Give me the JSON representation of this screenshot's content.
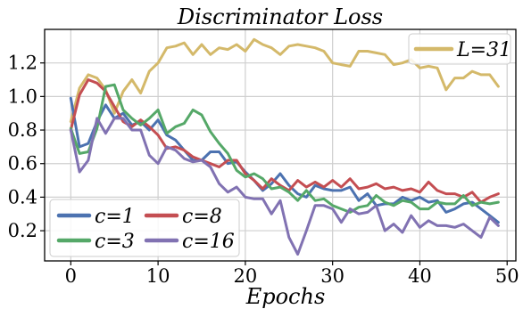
{
  "chart_data": {
    "type": "line",
    "title": "Discriminator Loss",
    "xlabel": "Epochs",
    "ylabel": "",
    "xlim": [
      -3,
      51
    ],
    "ylim": [
      0.02,
      1.4
    ],
    "xticks": [
      0,
      10,
      20,
      30,
      40,
      50
    ],
    "yticks": [
      0.2,
      0.4,
      0.6,
      0.8,
      1.0,
      1.2
    ],
    "ytick_labels": [
      "0.2",
      "0.4",
      "0.6",
      "0.8",
      "1.0",
      "1.2"
    ],
    "grid": true,
    "x": [
      0,
      1,
      2,
      3,
      4,
      5,
      6,
      7,
      8,
      9,
      10,
      11,
      12,
      13,
      14,
      15,
      16,
      17,
      18,
      19,
      20,
      21,
      22,
      23,
      24,
      25,
      26,
      27,
      28,
      29,
      30,
      31,
      32,
      33,
      34,
      35,
      36,
      37,
      38,
      39,
      40,
      41,
      42,
      43,
      44,
      45,
      46,
      47,
      48,
      49
    ],
    "series": [
      {
        "name": "L=31",
        "color": "#d4b96a",
        "values": [
          0.85,
          1.05,
          1.13,
          1.11,
          1.04,
          0.9,
          1.03,
          1.1,
          1.02,
          1.15,
          1.2,
          1.29,
          1.3,
          1.32,
          1.25,
          1.31,
          1.25,
          1.29,
          1.28,
          1.31,
          1.27,
          1.34,
          1.31,
          1.29,
          1.25,
          1.3,
          1.31,
          1.3,
          1.29,
          1.27,
          1.2,
          1.19,
          1.18,
          1.27,
          1.27,
          1.26,
          1.25,
          1.19,
          1.2,
          1.22,
          1.17,
          1.18,
          1.17,
          1.04,
          1.11,
          1.11,
          1.15,
          1.13,
          1.13,
          1.06
        ]
      },
      {
        "name": "c=1",
        "color": "#4c72b0",
        "values": [
          0.99,
          0.7,
          0.72,
          0.85,
          0.95,
          0.87,
          0.9,
          0.83,
          0.85,
          0.8,
          0.86,
          0.77,
          0.74,
          0.68,
          0.62,
          0.62,
          0.67,
          0.67,
          0.6,
          0.61,
          0.55,
          0.5,
          0.44,
          0.48,
          0.54,
          0.47,
          0.42,
          0.4,
          0.47,
          0.45,
          0.44,
          0.44,
          0.46,
          0.38,
          0.42,
          0.35,
          0.36,
          0.36,
          0.4,
          0.38,
          0.4,
          0.37,
          0.38,
          0.31,
          0.33,
          0.36,
          0.37,
          0.33,
          0.29,
          0.25
        ]
      },
      {
        "name": "c=8",
        "color": "#c44e52",
        "values": [
          0.8,
          1.01,
          1.1,
          1.08,
          1.03,
          0.94,
          0.85,
          0.82,
          0.86,
          0.82,
          0.77,
          0.69,
          0.7,
          0.68,
          0.64,
          0.62,
          0.6,
          0.58,
          0.62,
          0.62,
          0.54,
          0.5,
          0.45,
          0.51,
          0.47,
          0.44,
          0.5,
          0.46,
          0.49,
          0.46,
          0.5,
          0.46,
          0.51,
          0.45,
          0.46,
          0.48,
          0.45,
          0.46,
          0.44,
          0.45,
          0.43,
          0.49,
          0.44,
          0.42,
          0.42,
          0.4,
          0.43,
          0.37,
          0.4,
          0.42
        ]
      },
      {
        "name": "c=3",
        "color": "#55a868",
        "values": [
          0.81,
          0.66,
          0.67,
          0.81,
          1.06,
          1.07,
          0.92,
          0.87,
          0.83,
          0.87,
          0.92,
          0.78,
          0.82,
          0.84,
          0.92,
          0.89,
          0.79,
          0.72,
          0.66,
          0.56,
          0.52,
          0.54,
          0.51,
          0.45,
          0.46,
          0.43,
          0.38,
          0.44,
          0.38,
          0.39,
          0.35,
          0.33,
          0.31,
          0.34,
          0.35,
          0.41,
          0.37,
          0.35,
          0.38,
          0.37,
          0.33,
          0.33,
          0.37,
          0.36,
          0.36,
          0.41,
          0.35,
          0.37,
          0.36,
          0.37
        ]
      },
      {
        "name": "c=16",
        "color": "#8172b2",
        "values": [
          0.8,
          0.55,
          0.62,
          0.87,
          0.78,
          0.87,
          0.87,
          0.8,
          0.8,
          0.65,
          0.6,
          0.7,
          0.68,
          0.63,
          0.61,
          0.62,
          0.58,
          0.48,
          0.43,
          0.46,
          0.4,
          0.39,
          0.39,
          0.3,
          0.38,
          0.16,
          0.06,
          0.2,
          0.35,
          0.35,
          0.33,
          0.25,
          0.33,
          0.3,
          0.31,
          0.35,
          0.2,
          0.24,
          0.19,
          0.29,
          0.22,
          0.26,
          0.23,
          0.23,
          0.22,
          0.24,
          0.2,
          0.16,
          0.28,
          0.23
        ]
      }
    ],
    "legends": [
      {
        "placement": "top-right",
        "entries": [
          "L=31"
        ]
      },
      {
        "placement": "bottom-left",
        "entries": [
          "c=1",
          "c=8",
          "c=3",
          "c=16"
        ]
      }
    ]
  }
}
